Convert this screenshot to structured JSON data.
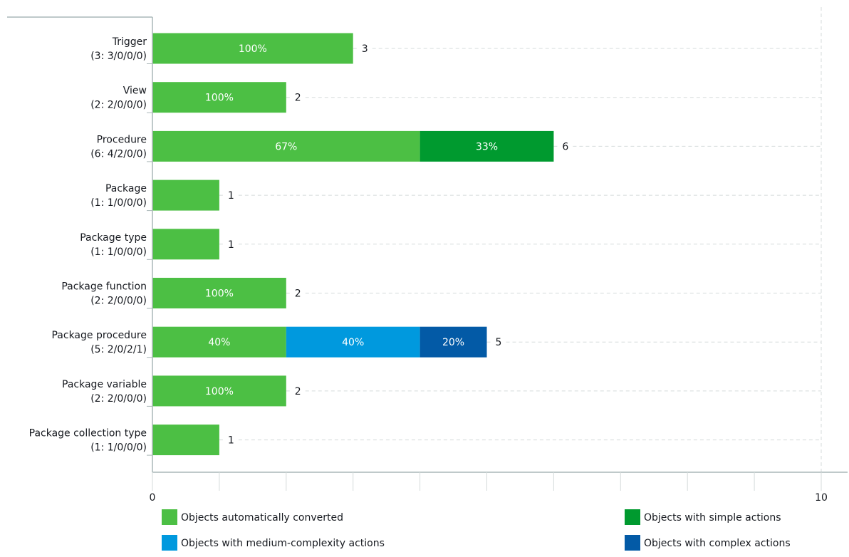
{
  "chart_data": {
    "type": "bar",
    "orientation": "horizontal",
    "stacked": true,
    "categories": [
      [
        "Trigger",
        "(3: 3/0/0/0)"
      ],
      [
        "View",
        "(2: 2/0/0/0)"
      ],
      [
        "Procedure",
        "(6: 4/2/0/0)"
      ],
      [
        "Package",
        "(1: 1/0/0/0)"
      ],
      [
        "Package type",
        "(1: 1/0/0/0)"
      ],
      [
        "Package function",
        "(2: 2/0/0/0)"
      ],
      [
        "Package procedure",
        "(5: 2/0/2/1)"
      ],
      [
        "Package variable",
        "(2: 2/0/0/0)"
      ],
      [
        "Package collection type",
        "(1: 1/0/0/0)"
      ]
    ],
    "series": [
      {
        "name": "Objects automatically converted",
        "color": "#4cbf44",
        "values": [
          3,
          2,
          4,
          1,
          1,
          2,
          2,
          2,
          1
        ],
        "labels": [
          "100%",
          "100%",
          "67%",
          "",
          "",
          "100%",
          "40%",
          "100%",
          ""
        ]
      },
      {
        "name": "Objects with simple actions",
        "color": "#009a2f",
        "values": [
          0,
          0,
          2,
          0,
          0,
          0,
          0,
          0,
          0
        ],
        "labels": [
          "",
          "",
          "33%",
          "",
          "",
          "",
          "",
          "",
          ""
        ]
      },
      {
        "name": "Objects with medium-complexity actions",
        "color": "#0099de",
        "values": [
          0,
          0,
          0,
          0,
          0,
          0,
          2,
          0,
          0
        ],
        "labels": [
          "",
          "",
          "",
          "",
          "",
          "",
          "40%",
          "",
          ""
        ]
      },
      {
        "name": "Objects with complex actions",
        "color": "#035aa6",
        "values": [
          0,
          0,
          0,
          0,
          0,
          0,
          1,
          0,
          0
        ],
        "labels": [
          "",
          "",
          "",
          "",
          "",
          "",
          "20%",
          "",
          ""
        ]
      }
    ],
    "totals": [
      "3",
      "2",
      "6",
      "1",
      "1",
      "2",
      "5",
      "2",
      "1"
    ],
    "xlim": [
      0,
      10
    ],
    "x_tick_labels": [
      "0",
      "10"
    ],
    "x_minor_ticks": 10,
    "grid": "horizontal dashed",
    "legend_position": "bottom"
  }
}
